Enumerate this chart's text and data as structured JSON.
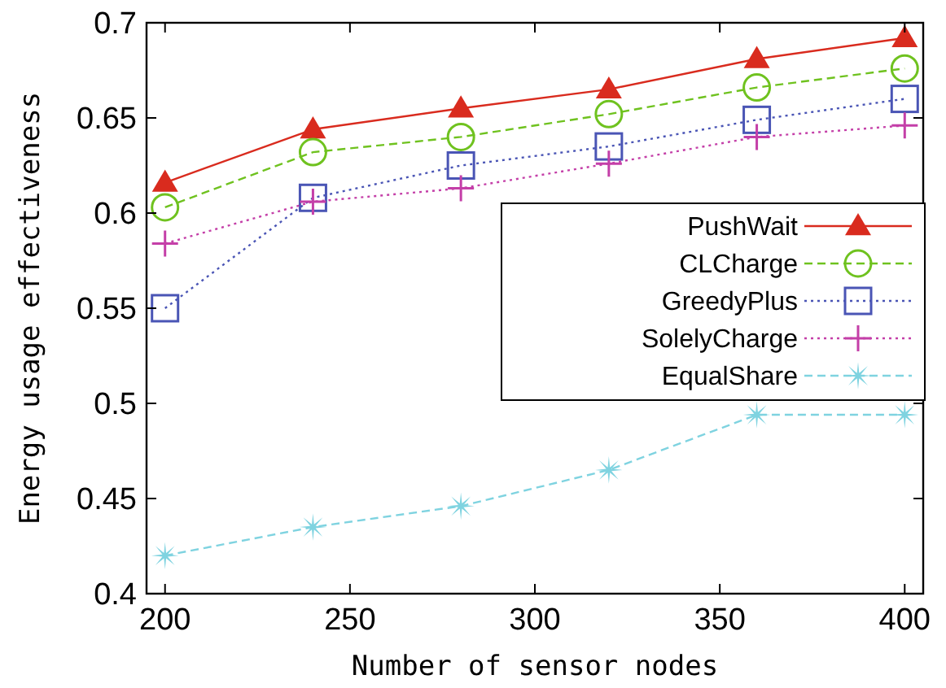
{
  "chart_data": {
    "type": "line",
    "xlabel": "Number of sensor nodes",
    "ylabel": "Energy usage effectiveness",
    "x": [
      200,
      240,
      280,
      320,
      360,
      400
    ],
    "xlim": [
      195,
      405
    ],
    "xticks": [
      200,
      250,
      300,
      350,
      400
    ],
    "ylim": [
      0.4,
      0.7
    ],
    "yticks": [
      0.4,
      0.45,
      0.5,
      0.55,
      0.6,
      0.65,
      0.7
    ],
    "legend": "right",
    "grid": false,
    "series": [
      {
        "name": "PushWait",
        "color": "#d92b1e",
        "marker": "triangle",
        "line_style": "solid",
        "values": [
          0.616,
          0.644,
          0.655,
          0.665,
          0.681,
          0.692
        ]
      },
      {
        "name": "CLCharge",
        "color": "#6fc21f",
        "marker": "circle",
        "line_style": "dashed",
        "values": [
          0.603,
          0.632,
          0.64,
          0.652,
          0.666,
          0.676
        ]
      },
      {
        "name": "GreedyPlus",
        "color": "#4a55b5",
        "marker": "square",
        "line_style": "dotted",
        "values": [
          0.55,
          0.608,
          0.625,
          0.635,
          0.649,
          0.66
        ]
      },
      {
        "name": "SolelyCharge",
        "color": "#c43fa8",
        "marker": "cross",
        "line_style": "dotted",
        "values": [
          0.584,
          0.606,
          0.613,
          0.626,
          0.64,
          0.646
        ]
      },
      {
        "name": "EqualShare",
        "color": "#7fd3e0",
        "marker": "star",
        "line_style": "dashed",
        "values": [
          0.42,
          0.435,
          0.446,
          0.465,
          0.494,
          0.494
        ]
      }
    ]
  }
}
